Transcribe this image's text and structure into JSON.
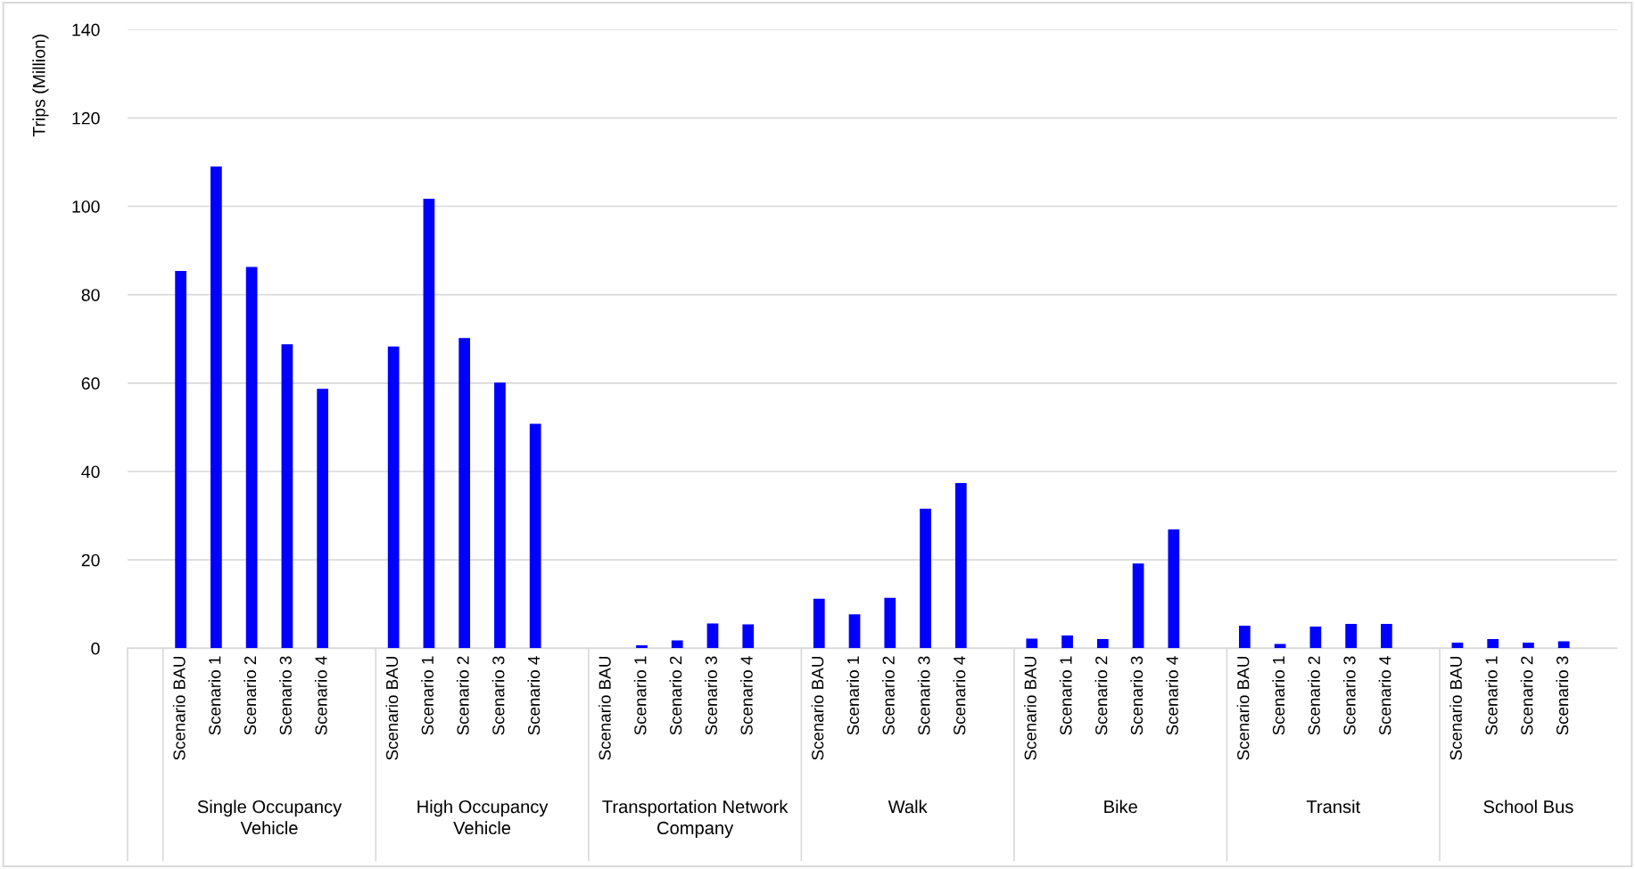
{
  "chart_data": {
    "type": "bar",
    "ylabel": "Trips (Million)",
    "categories": [
      null,
      "Scenario BAU",
      "Scenario 1",
      "Scenario 2",
      "Scenario 3",
      "Scenario 4",
      null,
      "Scenario BAU",
      "Scenario 1",
      "Scenario 2",
      "Scenario 3",
      "Scenario 4",
      null,
      "Scenario BAU",
      "Scenario 1",
      "Scenario 2",
      "Scenario 3",
      "Scenario 4",
      null,
      "Scenario BAU",
      "Scenario 1",
      "Scenario 2",
      "Scenario 3",
      "Scenario 4",
      null,
      "Scenario BAU",
      "Scenario 1",
      "Scenario 2",
      "Scenario 3",
      "Scenario 4",
      null,
      "Scenario BAU",
      "Scenario 1",
      "Scenario 2",
      "Scenario 3",
      "Scenario 4",
      null,
      "Scenario BAU",
      "Scenario 1",
      "Scenario 2",
      "Scenario 3",
      null
    ],
    "values": [
      null,
      85.4,
      109.0,
      86.3,
      68.8,
      58.7,
      null,
      68.3,
      101.7,
      70.2,
      60.1,
      50.8,
      null,
      0,
      0.7,
      1.8,
      5.6,
      5.4,
      null,
      11.2,
      7.7,
      11.4,
      31.6,
      37.4,
      null,
      2.2,
      2.9,
      2.1,
      19.2,
      26.9,
      null,
      5.1,
      1.0,
      4.9,
      5.5,
      5.5,
      null,
      1.3,
      2.1,
      1.3,
      1.6,
      null
    ],
    "color": "#0000ff",
    "annotations": [
      "Single Occupancy Vehicle",
      "High Occupancy Vehicle",
      "Transportation Network Company",
      "Walk",
      "Bike",
      "Transit",
      "School Bus"
    ],
    "ylim": [
      0,
      140
    ],
    "yticks": [
      0,
      20,
      40,
      60,
      80,
      100,
      120,
      140
    ],
    "grid": "y"
  }
}
